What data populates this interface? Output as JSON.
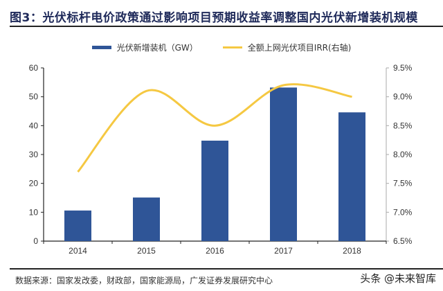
{
  "title": "图3：光伏标杆电价政策通过影响项目预期收益率调整国内光伏新增装机规模",
  "source": "数据来源：国家发改委，财政部，国家能源局，广发证券发展研究中心",
  "watermark": "头条 @未来智库",
  "chart_data": {
    "type": "bar+line",
    "title": "",
    "categories": [
      "2014",
      "2015",
      "2016",
      "2017",
      "2018"
    ],
    "series": [
      {
        "name": "光伏新增装机（GW）",
        "type": "bar",
        "axis": "left",
        "color": "#2f5597",
        "values": [
          10.6,
          15.1,
          34.8,
          53.2,
          44.6
        ]
      },
      {
        "name": "全额上网光伏项目IRR(右轴)",
        "type": "line",
        "smooth": true,
        "axis": "right",
        "color": "#f5c842",
        "values": [
          7.7,
          9.1,
          8.5,
          9.2,
          9.0
        ]
      }
    ],
    "y_left": {
      "lim": [
        0,
        60
      ],
      "ticks": [
        "0",
        "10",
        "20",
        "30",
        "40",
        "50",
        "60"
      ]
    },
    "y_right": {
      "lim": [
        6.5,
        9.5
      ],
      "ticks": [
        "6.5%",
        "7.0%",
        "7.5%",
        "8.0%",
        "8.5%",
        "9.0%",
        "9.5%"
      ]
    },
    "grid": false,
    "legend": "top-center"
  }
}
